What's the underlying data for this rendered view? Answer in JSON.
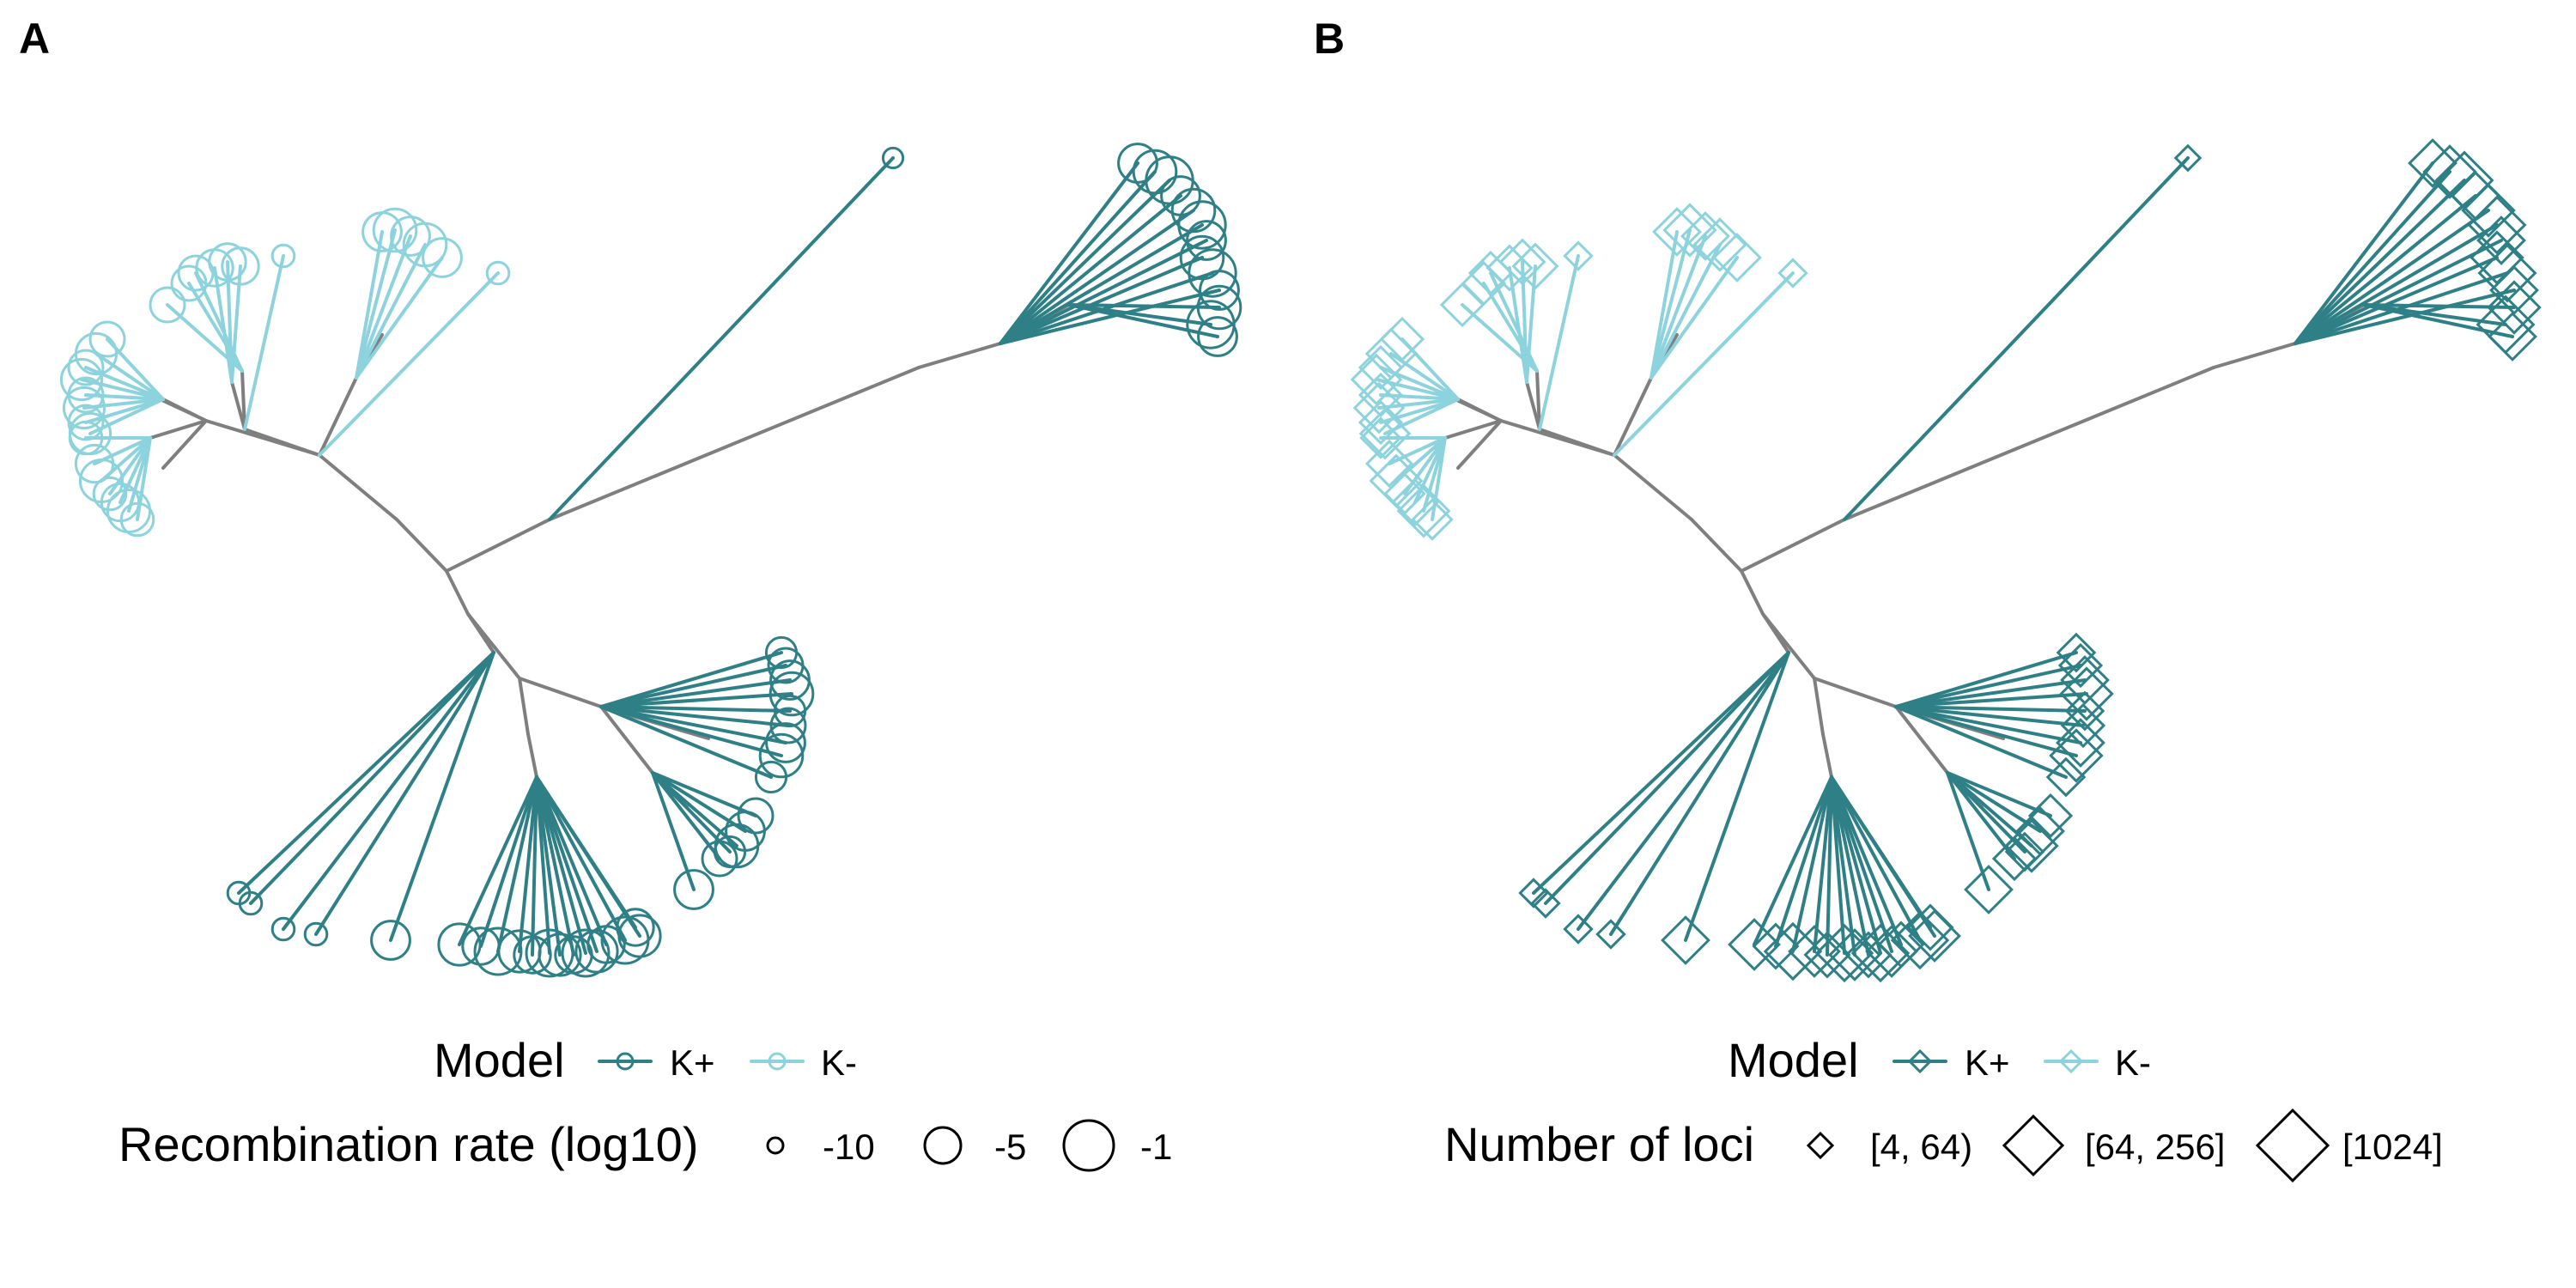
{
  "colors": {
    "k_plus": "#2e8086",
    "k_minus": "#8dd3dd",
    "internal": "#7f7f7f",
    "legend_key": "#000000"
  },
  "panels": [
    {
      "label": "A",
      "tip_shape": "circle",
      "legend": {
        "model_title": "Model",
        "model_items": [
          "K+",
          "K-"
        ],
        "size_title": "Recombination rate (log10)",
        "size_items": [
          "-10",
          "-5",
          "-1"
        ]
      }
    },
    {
      "label": "B",
      "tip_shape": "diamond",
      "legend": {
        "model_title": "Model",
        "model_items": [
          "K+",
          "K-"
        ],
        "size_title": "Number of loci",
        "size_items": [
          "[4, 64)",
          "[64, 256]",
          "[1024]"
        ]
      }
    }
  ]
}
